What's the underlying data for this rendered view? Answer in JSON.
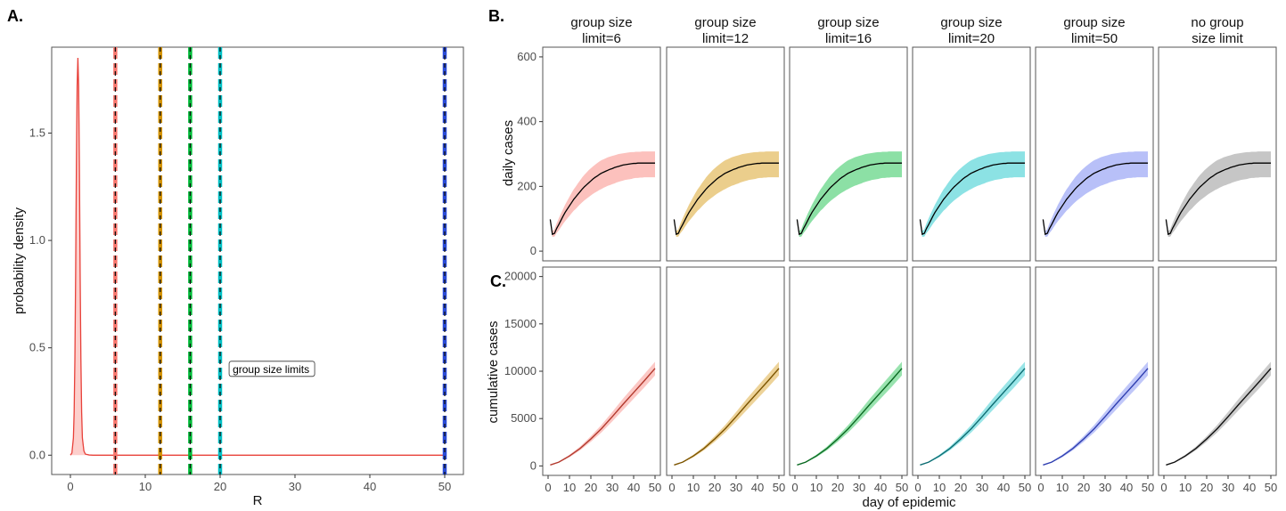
{
  "panel_labels": {
    "a": "A.",
    "b": "B.",
    "c": "C."
  },
  "chart_data": [
    {
      "id": "A",
      "type": "area",
      "xlabel": "R",
      "ylabel": "probability density",
      "xlim": [
        -2.5,
        52.5
      ],
      "ylim": [
        -0.09,
        1.9
      ],
      "x_ticks": [
        0,
        10,
        20,
        30,
        40,
        50
      ],
      "x_tick_labels": [
        "0",
        "10",
        "20",
        "30",
        "40",
        "50"
      ],
      "y_ticks": [
        0.0,
        0.5,
        1.0,
        1.5
      ],
      "y_tick_labels": [
        "0.0",
        "0.5",
        "1.0",
        "1.5"
      ],
      "grid": false,
      "density": {
        "color": "#f8766d",
        "line_color": "#e8413a",
        "x": [
          0.0,
          0.2,
          0.4,
          0.5,
          0.6,
          0.7,
          0.8,
          0.9,
          1.0,
          1.1,
          1.2,
          1.3,
          1.4,
          1.5,
          1.6,
          1.8,
          2.0,
          2.5,
          3.0,
          50.0
        ],
        "y": [
          0.0,
          0.01,
          0.08,
          0.2,
          0.45,
          0.85,
          1.35,
          1.72,
          1.85,
          1.72,
          1.35,
          0.85,
          0.45,
          0.2,
          0.08,
          0.02,
          0.005,
          0.001,
          0.0,
          0.0
        ]
      },
      "group_size_limits": [
        {
          "value": 6,
          "color": "#f8766d"
        },
        {
          "value": 12,
          "color": "#d39200"
        },
        {
          "value": 16,
          "color": "#00ba38"
        },
        {
          "value": 20,
          "color": "#00bfc4"
        },
        {
          "value": 50,
          "color": "#2a4bd7"
        }
      ],
      "annotation": {
        "text": "group size limits",
        "x": 21.2,
        "y": 0.4
      }
    },
    {
      "id": "B",
      "type": "line",
      "xlabel": "",
      "ylabel": "daily cases",
      "xlim": [
        -2.5,
        52.5
      ],
      "ylim": [
        -30,
        630
      ],
      "y_ticks": [
        0,
        200,
        400,
        600
      ],
      "y_tick_labels": [
        "0",
        "200",
        "400",
        "600"
      ],
      "grid": false,
      "x": [
        1,
        2,
        3,
        4,
        5,
        6,
        7,
        8,
        9,
        10,
        11,
        12,
        13,
        14,
        15,
        16,
        17,
        18,
        19,
        20,
        21,
        22,
        23,
        24,
        25,
        26,
        27,
        28,
        29,
        30,
        31,
        32,
        33,
        34,
        35,
        36,
        37,
        38,
        39,
        40,
        41,
        42,
        43,
        44,
        45,
        46,
        47,
        48,
        49,
        50
      ],
      "mean": [
        98,
        52,
        55,
        70,
        82,
        95,
        108,
        120,
        130,
        140,
        150,
        160,
        168,
        176,
        184,
        192,
        199,
        205,
        211,
        217,
        223,
        228,
        232,
        237,
        241,
        244,
        247,
        250,
        253,
        255,
        258,
        260,
        262,
        264,
        266,
        267,
        268,
        269,
        270,
        271,
        271,
        272,
        272,
        272,
        272,
        272,
        272,
        272,
        272,
        272
      ],
      "lower": [
        90,
        44,
        45,
        56,
        64,
        74,
        84,
        93,
        101,
        109,
        117,
        125,
        131,
        138,
        145,
        151,
        157,
        162,
        167,
        172,
        177,
        181,
        185,
        189,
        192,
        196,
        199,
        202,
        204,
        207,
        209,
        212,
        214,
        216,
        218,
        220,
        221,
        222,
        223,
        225,
        226,
        226,
        227,
        227,
        228,
        228,
        228,
        228,
        228,
        228
      ],
      "upper": [
        100,
        62,
        68,
        86,
        101,
        116,
        130,
        144,
        156,
        168,
        180,
        191,
        200,
        210,
        219,
        228,
        236,
        243,
        250,
        256,
        262,
        267,
        272,
        277,
        281,
        284,
        287,
        290,
        292,
        294,
        296,
        298,
        300,
        301,
        302,
        303,
        304,
        305,
        306,
        306,
        307,
        307,
        307,
        308,
        308,
        308,
        308,
        308,
        308,
        308
      ]
    },
    {
      "id": "C",
      "type": "line",
      "xlabel": "day of epidemic",
      "ylabel": "cumulative cases",
      "xlim": [
        -2.5,
        52.5
      ],
      "ylim": [
        -1000,
        21000
      ],
      "x_ticks": [
        0,
        10,
        20,
        30,
        40,
        50
      ],
      "x_tick_labels": [
        "0",
        "10",
        "20",
        "30",
        "40",
        "50"
      ],
      "y_ticks": [
        0,
        5000,
        10000,
        15000,
        20000
      ],
      "y_tick_labels": [
        "0",
        "5000",
        "10000",
        "15000",
        "20000"
      ],
      "grid": false,
      "x": [
        1,
        5,
        10,
        15,
        20,
        25,
        30,
        35,
        40,
        45,
        50
      ],
      "mean": [
        100,
        400,
        1050,
        1850,
        2850,
        3950,
        5200,
        6500,
        7750,
        9000,
        10300
      ],
      "lower": [
        90,
        350,
        920,
        1650,
        2550,
        3550,
        4700,
        5900,
        7100,
        8300,
        9550
      ],
      "upper": [
        110,
        450,
        1180,
        2050,
        3150,
        4350,
        5700,
        7100,
        8400,
        9700,
        11000
      ]
    }
  ],
  "facets": [
    {
      "strip": [
        "group size",
        "limit=6"
      ],
      "fill": "#f8766d",
      "cum_line": "#b33a2e"
    },
    {
      "strip": [
        "group size",
        "limit=12"
      ],
      "fill": "#d39200",
      "cum_line": "#7c5400"
    },
    {
      "strip": [
        "group size",
        "limit=16"
      ],
      "fill": "#00ba38",
      "cum_line": "#0b6a22"
    },
    {
      "strip": [
        "group size",
        "limit=20"
      ],
      "fill": "#00bfc4",
      "cum_line": "#0d6d73"
    },
    {
      "strip": [
        "group size",
        "limit=50"
      ],
      "fill": "#6174f0",
      "cum_line": "#2f3fb0"
    },
    {
      "strip": [
        "no group",
        "size limit"
      ],
      "fill": "#808080",
      "cum_line": "#111111"
    }
  ]
}
